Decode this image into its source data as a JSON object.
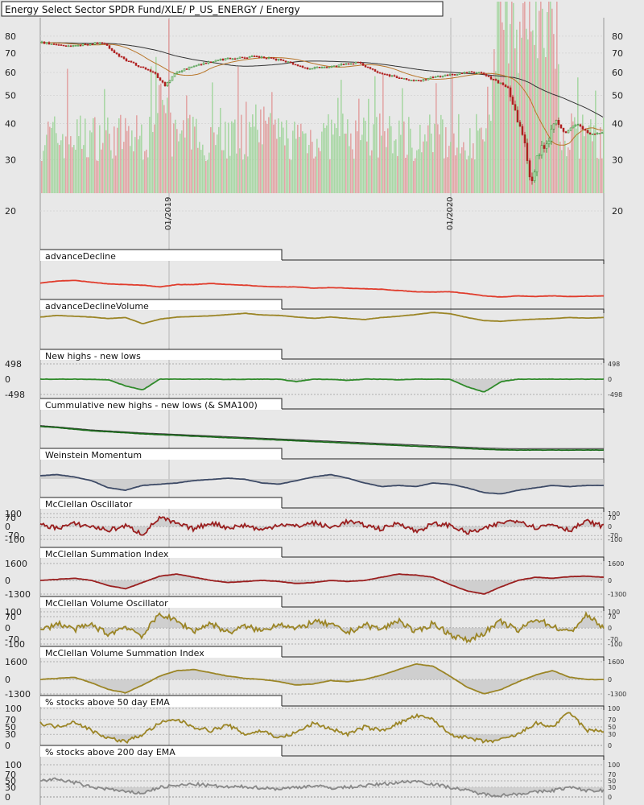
{
  "chart_data": [
    {
      "type": "candlestick",
      "title": "Energy Select Sector SPDR Fund/XLE/ P_US_ENERGY / Energy",
      "y_scale": "log",
      "ylim": [
        20,
        90
      ],
      "y_ticks": [
        20,
        30,
        40,
        50,
        60,
        70,
        80
      ],
      "x_ticks": [
        "01/2019",
        "01/2020"
      ],
      "price_path": [
        [
          0,
          76
        ],
        [
          0.05,
          74
        ],
        [
          0.11,
          76
        ],
        [
          0.13,
          70
        ],
        [
          0.15,
          66
        ],
        [
          0.2,
          60
        ],
        [
          0.22,
          54
        ],
        [
          0.24,
          60
        ],
        [
          0.28,
          64
        ],
        [
          0.33,
          67
        ],
        [
          0.38,
          68
        ],
        [
          0.43,
          66
        ],
        [
          0.47,
          62
        ],
        [
          0.52,
          63
        ],
        [
          0.56,
          65
        ],
        [
          0.6,
          60
        ],
        [
          0.64,
          57
        ],
        [
          0.67,
          56
        ],
        [
          0.7,
          58
        ],
        [
          0.73,
          59
        ],
        [
          0.76,
          60
        ],
        [
          0.78,
          60
        ],
        [
          0.8,
          57
        ],
        [
          0.83,
          53
        ],
        [
          0.84,
          45
        ],
        [
          0.86,
          33
        ],
        [
          0.87,
          24
        ],
        [
          0.88,
          31
        ],
        [
          0.9,
          35
        ],
        [
          0.91,
          41
        ],
        [
          0.93,
          37
        ],
        [
          0.95,
          40
        ],
        [
          0.97,
          37
        ],
        [
          1,
          37
        ]
      ],
      "overlays": [
        {
          "kind": "moving-average",
          "color": "#b8762a"
        },
        {
          "kind": "moving-average",
          "color": "#333333"
        }
      ],
      "volume_up_color": "#9fd49a",
      "volume_down_color": "#e19a9a"
    },
    {
      "type": "line",
      "title": "advanceDecline",
      "color": "#e03c2c",
      "y": [
        0.55,
        0.62,
        0.64,
        0.58,
        0.52,
        0.5,
        0.48,
        0.42,
        0.5,
        0.5,
        0.54,
        0.5,
        0.48,
        0.44,
        0.42,
        0.42,
        0.38,
        0.4,
        0.38,
        0.36,
        0.34,
        0.3,
        0.26,
        0.25,
        0.26,
        0.2,
        0.12,
        0.08,
        0.12,
        0.1,
        0.12,
        0.1,
        0.11,
        0.12
      ]
    },
    {
      "type": "line",
      "title": "advanceDeclineVolume",
      "color": "#9b8526",
      "y": [
        0.62,
        0.7,
        0.66,
        0.62,
        0.55,
        0.6,
        0.3,
        0.52,
        0.62,
        0.65,
        0.68,
        0.74,
        0.8,
        0.72,
        0.7,
        0.62,
        0.56,
        0.62,
        0.56,
        0.5,
        0.6,
        0.66,
        0.74,
        0.84,
        0.78,
        0.6,
        0.45,
        0.42,
        0.48,
        0.52,
        0.55,
        0.6,
        0.57,
        0.6
      ]
    },
    {
      "type": "area",
      "title": "New highs - new lows",
      "color": "#2f8a2a",
      "y_ticks": [
        498,
        0,
        -498
      ],
      "ylim": [
        -498,
        498
      ],
      "y": [
        0,
        0,
        0,
        -5,
        -20,
        -220,
        -350,
        0,
        0,
        0,
        0,
        -10,
        -5,
        0,
        -5,
        -80,
        0,
        -5,
        -40,
        0,
        0,
        -20,
        0,
        0,
        -5,
        -250,
        -420,
        -80,
        0,
        0,
        0,
        0,
        0,
        0
      ]
    },
    {
      "type": "line",
      "title": "Cummulative new highs - new lows (& SMA100)",
      "colors": [
        "#1c6b1c",
        "#333333"
      ],
      "y": [
        0.95,
        0.9,
        0.84,
        0.78,
        0.74,
        0.7,
        0.66,
        0.63,
        0.6,
        0.57,
        0.54,
        0.51,
        0.48,
        0.45,
        0.42,
        0.39,
        0.36,
        0.33,
        0.3,
        0.27,
        0.24,
        0.21,
        0.18,
        0.15,
        0.12,
        0.09,
        0.06,
        0.04,
        0.03,
        0.03,
        0.03,
        0.03,
        0.03,
        0.03
      ]
    },
    {
      "type": "area",
      "title": "Weinstein Momentum",
      "color": "#3d4a66",
      "y": [
        0.9,
        0.95,
        0.85,
        0.7,
        0.4,
        0.3,
        0.5,
        0.55,
        0.6,
        0.7,
        0.75,
        0.8,
        0.75,
        0.6,
        0.55,
        0.7,
        0.85,
        0.95,
        0.8,
        0.6,
        0.45,
        0.5,
        0.45,
        0.6,
        0.55,
        0.4,
        0.2,
        0.15,
        0.3,
        0.4,
        0.5,
        0.45,
        0.5,
        0.5
      ]
    },
    {
      "type": "line",
      "title": "McClellan Oscillator",
      "color": "#9a1f1f",
      "y_ticks": [
        100,
        70,
        0,
        -70,
        -100
      ],
      "ylim": [
        -100,
        100
      ],
      "y": [
        10,
        -10,
        20,
        0,
        -30,
        5,
        -60,
        70,
        20,
        -20,
        30,
        -10,
        10,
        -30,
        20,
        0,
        30,
        -10,
        40,
        10,
        -20,
        30,
        -40,
        20,
        10,
        -50,
        -20,
        30,
        50,
        -10,
        20,
        -30,
        40,
        0
      ]
    },
    {
      "type": "area",
      "title": "McClellan Summation Index",
      "color": "#9a1f1f",
      "y_ticks": [
        1600,
        0,
        -1300
      ],
      "ylim": [
        -1300,
        1600
      ],
      "y": [
        0,
        100,
        200,
        0,
        -500,
        -800,
        -200,
        400,
        600,
        300,
        0,
        -200,
        -100,
        0,
        -100,
        -300,
        -200,
        0,
        -100,
        0,
        300,
        600,
        500,
        300,
        -400,
        -1000,
        -1300,
        -600,
        0,
        300,
        200,
        350,
        400,
        300
      ]
    },
    {
      "type": "line",
      "title": "McClellan Volume Oscillator",
      "color": "#9b8526",
      "y_ticks": [
        100,
        70,
        0,
        -70,
        -100
      ],
      "ylim": [
        -100,
        100
      ],
      "y": [
        -20,
        30,
        -10,
        20,
        -40,
        10,
        -50,
        90,
        40,
        -20,
        30,
        -30,
        10,
        -20,
        30,
        -10,
        40,
        20,
        -30,
        20,
        -10,
        50,
        -30,
        30,
        -40,
        -80,
        -30,
        40,
        -20,
        60,
        10,
        -30,
        80,
        0
      ]
    },
    {
      "type": "area",
      "title": "McClellan Volume Summation Index",
      "color": "#9b8526",
      "y_ticks": [
        1600,
        0,
        -1300
      ],
      "ylim": [
        -1300,
        1600
      ],
      "y": [
        0,
        100,
        200,
        -300,
        -900,
        -1200,
        -500,
        300,
        800,
        900,
        600,
        300,
        100,
        0,
        -200,
        -500,
        -400,
        -100,
        -200,
        0,
        400,
        900,
        1400,
        1200,
        300,
        -700,
        -1300,
        -900,
        -200,
        400,
        800,
        200,
        0,
        0
      ]
    },
    {
      "type": "line",
      "title": "% stocks above 50 day EMA",
      "color": "#9b8526",
      "y_ticks": [
        100,
        70,
        50,
        30,
        0
      ],
      "ylim": [
        0,
        100
      ],
      "y": [
        60,
        50,
        65,
        40,
        20,
        10,
        30,
        60,
        70,
        50,
        40,
        55,
        30,
        40,
        20,
        35,
        60,
        45,
        30,
        50,
        40,
        60,
        80,
        70,
        30,
        20,
        10,
        15,
        30,
        60,
        50,
        90,
        40,
        40
      ]
    },
    {
      "type": "line",
      "title": "% stocks above 200 day EMA",
      "color": "#888888",
      "y_ticks": [
        100,
        70,
        50,
        30,
        0
      ],
      "ylim": [
        0,
        100
      ],
      "y": [
        50,
        55,
        45,
        30,
        25,
        15,
        12,
        30,
        35,
        40,
        35,
        30,
        32,
        28,
        25,
        30,
        35,
        28,
        30,
        35,
        40,
        45,
        50,
        40,
        30,
        20,
        8,
        5,
        10,
        15,
        20,
        30,
        20,
        20
      ]
    }
  ]
}
